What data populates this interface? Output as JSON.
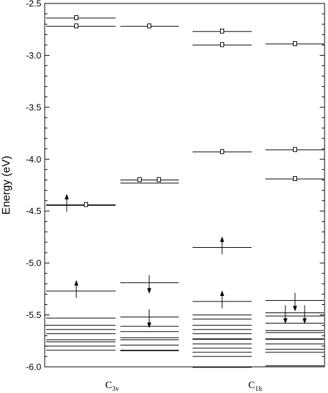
{
  "chart_data": {
    "type": "energy-level-diagram",
    "ylabel": "Energy (eV)",
    "ylim": [
      -6.0,
      -2.5
    ],
    "yticks": [
      "-2.5",
      "-3.0",
      "-3.5",
      "-4.0",
      "-4.5",
      "-5.0",
      "-5.5",
      "-6.0"
    ],
    "grid": false,
    "groups": [
      {
        "symbol": "C",
        "subscript": "3v"
      },
      {
        "symbol": "C",
        "subscript": "1h"
      }
    ],
    "columns": [
      {
        "group": 0,
        "levels": [
          -2.64,
          -2.72,
          -4.44,
          -4.445,
          -5.27,
          -5.53,
          -5.6,
          -5.64,
          -5.68,
          -5.74,
          -5.76,
          -5.8,
          -5.84
        ],
        "markers": [
          {
            "e": -2.64,
            "kind": "empty",
            "n": 1
          },
          {
            "e": -2.72,
            "kind": "empty",
            "n": 1
          },
          {
            "e": -4.44,
            "kind": "up",
            "n": 1
          },
          {
            "e": -4.44,
            "kind": "empty",
            "n": 1
          },
          {
            "e": -5.27,
            "kind": "up",
            "n": 1
          }
        ]
      },
      {
        "group": 0,
        "levels": [
          -2.72,
          -4.2,
          -4.23,
          -5.19,
          -5.52,
          -5.61,
          -5.66,
          -5.72,
          -5.74,
          -5.79,
          -5.84,
          -5.845
        ],
        "markers": [
          {
            "e": -2.72,
            "kind": "empty",
            "n": 1
          },
          {
            "e": -4.2,
            "kind": "empty",
            "n": 2
          },
          {
            "e": -5.19,
            "kind": "down",
            "n": 1
          },
          {
            "e": -5.52,
            "kind": "down",
            "n": 1
          }
        ]
      },
      {
        "group": 1,
        "levels": [
          -2.77,
          -2.9,
          -3.93,
          -4.85,
          -5.37,
          -5.5,
          -5.54,
          -5.6,
          -5.64,
          -5.68,
          -5.73,
          -5.735,
          -5.78,
          -5.82,
          -5.86,
          -5.9,
          -6.0,
          -6.005
        ],
        "markers": [
          {
            "e": -2.77,
            "kind": "empty",
            "n": 1
          },
          {
            "e": -2.9,
            "kind": "empty",
            "n": 1
          },
          {
            "e": -3.93,
            "kind": "empty",
            "n": 1
          },
          {
            "e": -4.85,
            "kind": "up",
            "n": 1
          },
          {
            "e": -5.37,
            "kind": "up",
            "n": 1
          }
        ]
      },
      {
        "group": 1,
        "levels": [
          -2.89,
          -3.91,
          -4.19,
          -5.36,
          -5.48,
          -5.51,
          -5.58,
          -5.65,
          -5.67,
          -5.73,
          -5.735,
          -5.78,
          -5.83,
          -5.86,
          -5.99
        ],
        "markers": [
          {
            "e": -2.89,
            "kind": "empty",
            "n": 1
          },
          {
            "e": -3.91,
            "kind": "empty",
            "n": 1
          },
          {
            "e": -4.19,
            "kind": "empty",
            "n": 1
          },
          {
            "e": -5.36,
            "kind": "down",
            "n": 1
          },
          {
            "e": -5.48,
            "kind": "down",
            "n": 2
          }
        ]
      }
    ]
  }
}
